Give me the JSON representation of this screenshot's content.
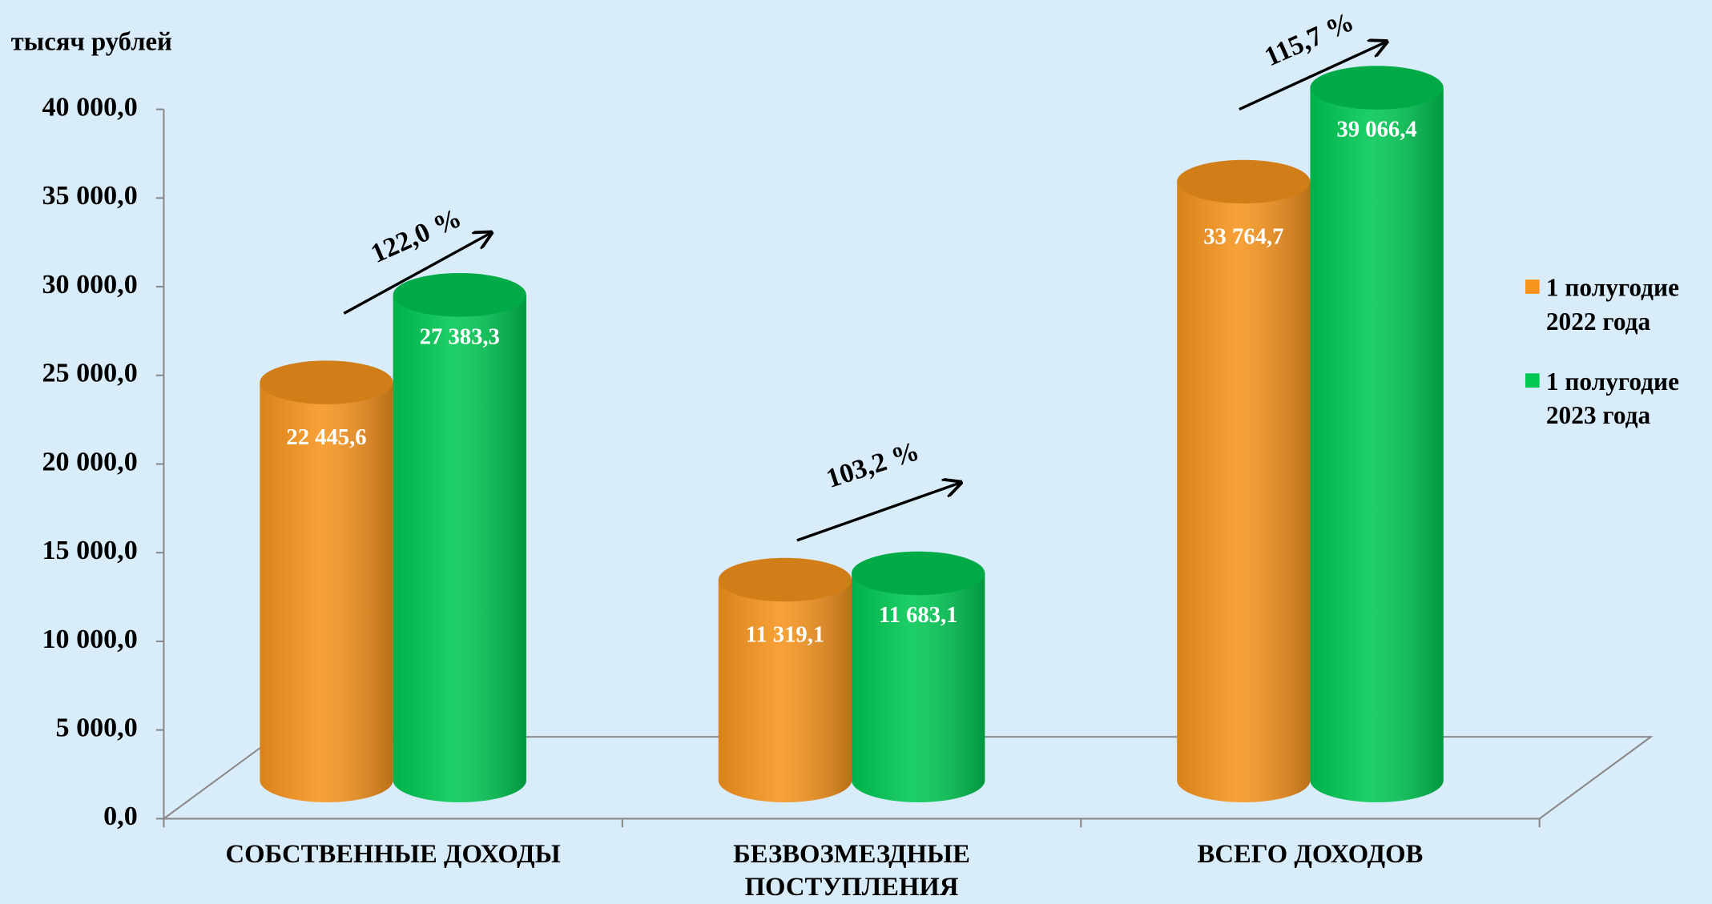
{
  "chart_data": {
    "type": "bar",
    "y_label": "тысяч рублей",
    "categories": [
      "СОБСТВЕННЫЕ ДОХОДЫ",
      "БЕЗВОЗМЕЗДНЫЕ ПОСТУПЛЕНИЯ",
      "ВСЕГО ДОХОДОВ"
    ],
    "series": [
      {
        "name": "1 полугодие 2022 года",
        "color": "#f7941d",
        "values": [
          22445.6,
          11319.1,
          33764.7
        ],
        "value_labels": [
          "22 445,6",
          "11 319,1",
          "33 764,7"
        ]
      },
      {
        "name": "1 полугодие 2023 года",
        "color": "#00c853",
        "values": [
          27383.3,
          11683.1,
          39066.4
        ],
        "value_labels": [
          "27 383,3",
          "11 683,1",
          "39 066,4"
        ]
      }
    ],
    "ylim": [
      0,
      40000
    ],
    "yticks": [
      {
        "value": 0,
        "label": "0,0"
      },
      {
        "value": 5000,
        "label": "5 000,0"
      },
      {
        "value": 10000,
        "label": "10 000,0"
      },
      {
        "value": 15000,
        "label": "15 000,0"
      },
      {
        "value": 20000,
        "label": "20 000,0"
      },
      {
        "value": 25000,
        "label": "25 000,0"
      },
      {
        "value": 30000,
        "label": "30 000,0"
      },
      {
        "value": 35000,
        "label": "35 000,0"
      },
      {
        "value": 40000,
        "label": "40 000,0"
      }
    ],
    "annotations": [
      "122,0 %",
      "103,2 %",
      "115,7 %"
    ],
    "legend": "right"
  }
}
